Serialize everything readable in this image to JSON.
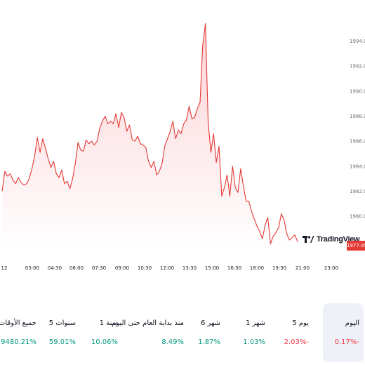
{
  "chart": {
    "last_price_label": "1977.95",
    "logo_text": "TradingView",
    "y_ticks": [
      "1994.00",
      "1992.00",
      "1990.00",
      "1988.00",
      "1986.00",
      "1984.00",
      "1982.00",
      "1980.00"
    ],
    "x_ticks": [
      "12",
      "03:00",
      "04:30",
      "06:00",
      "07:30",
      "09:00",
      "10:30",
      "12:00",
      "13:30",
      "15:00",
      "16:30",
      "18:00",
      "19:30",
      "21:00",
      "23:00"
    ],
    "colors": {
      "line": "#e53935",
      "fill_top": "#fbd3d6",
      "fill_bottom": "#ffffff",
      "price_badge": "#e53935"
    }
  },
  "chart_data": {
    "type": "area",
    "y_label_side": "right",
    "ylim": [
      1977.2,
      1995.6
    ],
    "x": [
      0,
      2,
      4,
      6,
      8,
      10,
      12,
      14,
      16,
      18,
      20,
      22,
      24,
      26,
      28,
      30,
      32,
      34,
      36,
      38,
      40,
      42,
      44,
      46,
      48,
      50,
      52,
      54,
      56,
      58,
      60,
      62,
      64,
      66,
      68,
      70,
      72,
      74,
      76,
      78,
      80,
      82,
      84,
      86,
      88,
      90,
      92,
      94,
      96,
      98,
      100,
      102,
      104,
      106,
      108,
      110,
      112,
      114,
      116,
      118,
      120,
      122,
      124,
      126,
      128,
      130,
      132,
      134,
      136,
      138,
      140,
      142,
      144,
      146,
      148,
      150,
      152,
      154,
      156,
      158,
      160,
      162,
      164,
      166,
      168,
      170,
      172,
      174,
      176,
      178,
      180,
      182,
      184,
      186,
      188,
      190,
      192,
      194,
      196,
      198,
      200,
      202,
      204,
      206,
      208,
      210,
      212,
      214,
      216,
      218
    ],
    "values": [
      1982.0,
      1983.6,
      1983.2,
      1983.4,
      1982.9,
      1982.6,
      1983.1,
      1982.7,
      1982.5,
      1982.6,
      1983.0,
      1983.8,
      1984.8,
      1986.3,
      1985.1,
      1986.2,
      1985.4,
      1984.6,
      1983.9,
      1984.4,
      1983.4,
      1983.1,
      1983.7,
      1982.6,
      1982.8,
      1982.2,
      1983.0,
      1984.2,
      1985.9,
      1985.3,
      1985.2,
      1986.1,
      1985.8,
      1986.0,
      1985.7,
      1986.0,
      1987.0,
      1987.6,
      1988.0,
      1987.4,
      1987.6,
      1987.4,
      1988.2,
      1987.1,
      1988.3,
      1987.9,
      1986.8,
      1987.3,
      1986.1,
      1986.0,
      1986.4,
      1985.8,
      1985.7,
      1985.5,
      1984.4,
      1983.9,
      1984.4,
      1983.3,
      1983.6,
      1984.2,
      1985.6,
      1986.2,
      1986.8,
      1987.6,
      1986.2,
      1986.9,
      1986.6,
      1987.4,
      1987.7,
      1988.8,
      1987.8,
      1987.9,
      1988.6,
      1989.1,
      1993.7,
      1995.4,
      1987.6,
      1985.1,
      1986.6,
      1984.3,
      1985.6,
      1981.6,
      1982.3,
      1983.3,
      1981.6,
      1984.0,
      1982.3,
      1981.9,
      1983.8,
      1982.4,
      1981.2,
      1981.2,
      1980.4,
      1979.8,
      1979.2,
      1978.8,
      1978.2,
      1979.3,
      1979.9,
      1977.8,
      1978.4,
      1978.7,
      1979.1,
      1980.2,
      1979.7,
      1978.6,
      1978.1,
      1978.3,
      1978.5,
      1977.95
    ]
  },
  "periods": [
    {
      "label": "اليوم",
      "value": "0.17%-",
      "trend": "neg",
      "active": true
    },
    {
      "label": "5 يوم",
      "value": "2.03%-",
      "trend": "neg",
      "active": false
    },
    {
      "label": "1 شهر",
      "value": "1.03%",
      "trend": "pos",
      "active": false
    },
    {
      "label": "6 شهر",
      "value": "1.87%",
      "trend": "pos",
      "active": false
    },
    {
      "label": "منذ بداية العام حتى اليوم",
      "value": "8.49%",
      "trend": "pos",
      "active": false
    },
    {
      "label": "1 سنة",
      "value": "10.06%",
      "trend": "pos",
      "active": false
    },
    {
      "label": "5 سنوات",
      "value": "59.01%",
      "trend": "pos",
      "active": false
    },
    {
      "label": "جميع الأوقات",
      "value": "9480.21%",
      "trend": "pos",
      "active": false
    }
  ]
}
